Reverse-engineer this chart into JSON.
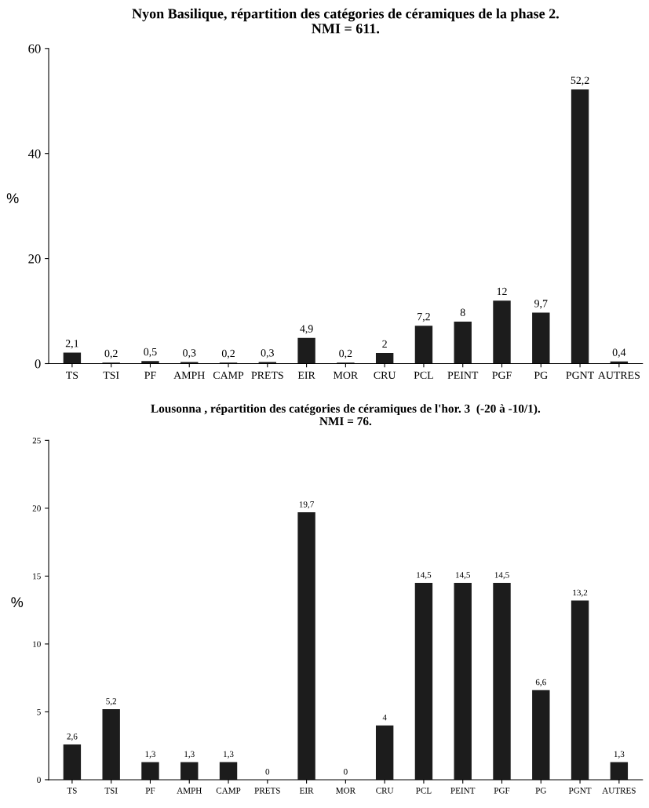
{
  "chart_data": [
    {
      "type": "bar",
      "title": "Nyon Basilique, répartition des catégories de céramiques de la phase 2.\nNMI = 611.",
      "ylabel": "%",
      "categories": [
        "TS",
        "TSI",
        "PF",
        "AMPH",
        "CAMP",
        "PRETS",
        "EIR",
        "MOR",
        "CRU",
        "PCL",
        "PEINT",
        "PGF",
        "PG",
        "PGNT",
        "AUTRES"
      ],
      "values": [
        2.1,
        0.2,
        0.5,
        0.3,
        0.2,
        0.3,
        4.9,
        0.2,
        2,
        7.2,
        8,
        12,
        9.7,
        52.2,
        0.4
      ],
      "value_labels": [
        "2,1",
        "0,2",
        "0,5",
        "0,3",
        "0,2",
        "0,3",
        "4,9",
        "0,2",
        "2",
        "7,2",
        "8",
        "12",
        "9,7",
        "52,2",
        "0,4"
      ],
      "color": "#1c1c1c",
      "ylim": [
        0,
        60
      ],
      "yticks": [
        0,
        20,
        40,
        60
      ],
      "grid": false,
      "legend": false
    },
    {
      "type": "bar",
      "title": "Lousonna , répartition des catégories de céramiques de l'hor. 3  (-20 à -10/1).\nNMI = 76.",
      "ylabel": "%",
      "categories": [
        "TS",
        "TSI",
        "PF",
        "AMPH",
        "CAMP",
        "PRETS",
        "EIR",
        "MOR",
        "CRU",
        "PCL",
        "PEINT",
        "PGF",
        "PG",
        "PGNT",
        "AUTRES"
      ],
      "values": [
        2.6,
        5.2,
        1.3,
        1.3,
        1.3,
        0,
        19.7,
        0,
        4,
        14.5,
        14.5,
        14.5,
        6.6,
        13.2,
        1.3
      ],
      "value_labels": [
        "2,6",
        "5,2",
        "1,3",
        "1,3",
        "1,3",
        "0",
        "19,7",
        "0",
        "4",
        "14,5",
        "14,5",
        "14,5",
        "6,6",
        "13,2",
        "1,3"
      ],
      "color": "#1c1c1c",
      "ylim": [
        0,
        25
      ],
      "yticks": [
        0,
        5,
        10,
        15,
        20,
        25
      ],
      "grid": false,
      "legend": false
    }
  ]
}
